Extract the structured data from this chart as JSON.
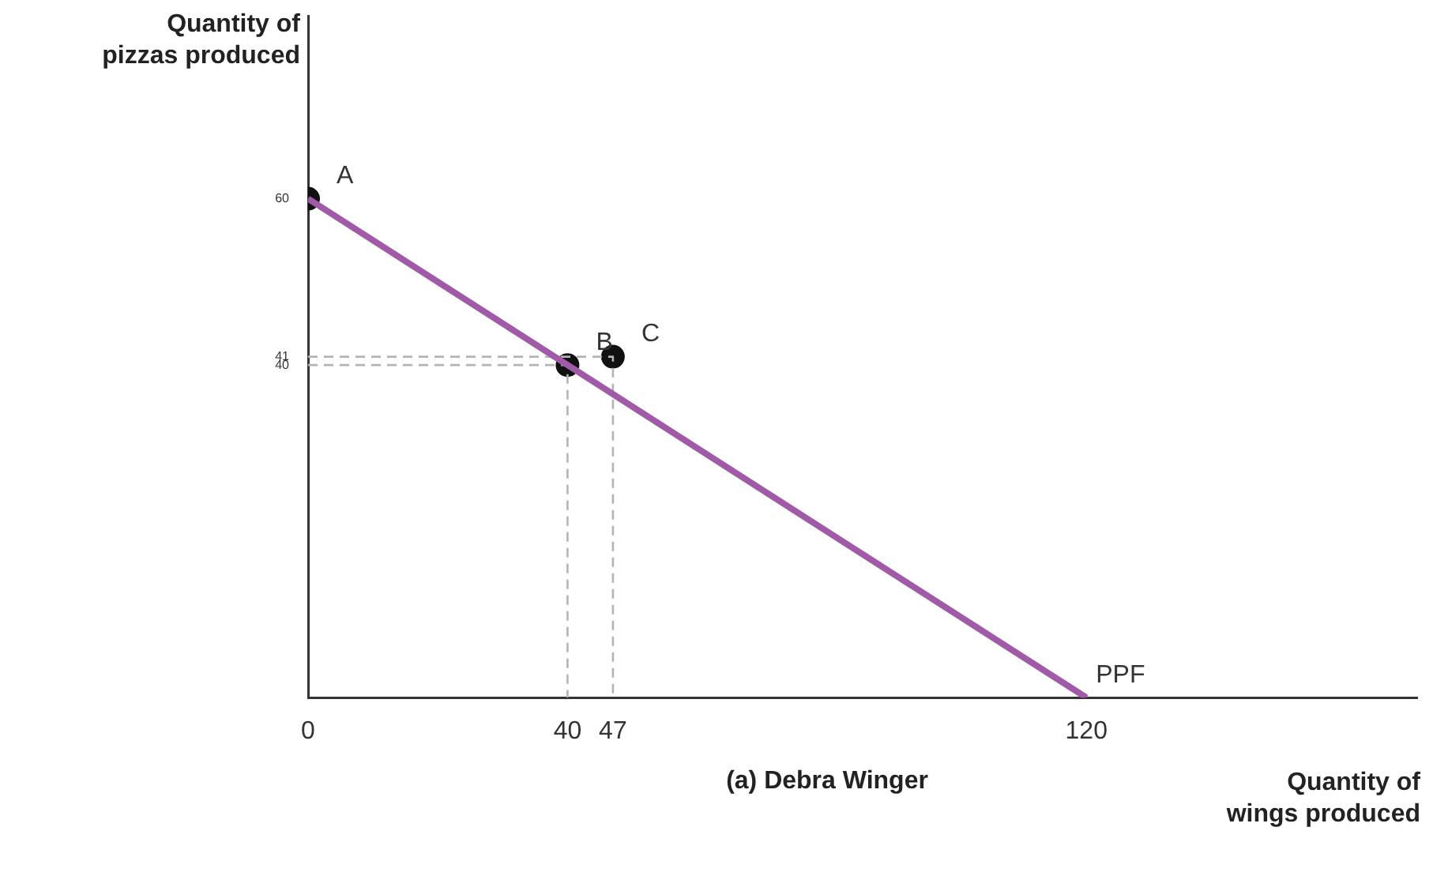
{
  "chart_data": {
    "type": "line",
    "title": "(a) Debra Winger",
    "xlabel": "Quantity of wings produced",
    "ylabel": "Quantity of pizzas produced",
    "xlim": [
      0,
      171
    ],
    "ylim": [
      0,
      82
    ],
    "xticks": [
      0,
      40,
      47,
      120
    ],
    "yticks": [
      40,
      41,
      60
    ],
    "grid": false,
    "legend": false,
    "series": [
      {
        "name": "PPF",
        "color": "#a05aa8",
        "x": [
          0,
          120
        ],
        "values": [
          60,
          0
        ],
        "marker": "none",
        "line_style": "solid"
      },
      {
        "color": "#b4b4b4",
        "x": [
          0,
          40,
          40
        ],
        "values": [
          40,
          40,
          0
        ],
        "marker": "none",
        "line_style": "dashed"
      },
      {
        "color": "#b4b4b4",
        "x": [
          0,
          47,
          47
        ],
        "values": [
          41,
          41,
          0
        ],
        "marker": "none",
        "line_style": "dashed"
      },
      {
        "type": "scatter",
        "color": "#111111",
        "x": [
          0,
          40,
          47
        ],
        "values": [
          60,
          40,
          41
        ],
        "marker": "circle"
      }
    ],
    "annotations": [
      {
        "text": "A",
        "x": 0,
        "y": 60
      },
      {
        "text": "B",
        "x": 40,
        "y": 40
      },
      {
        "text": "C",
        "x": 47,
        "y": 41
      }
    ]
  }
}
